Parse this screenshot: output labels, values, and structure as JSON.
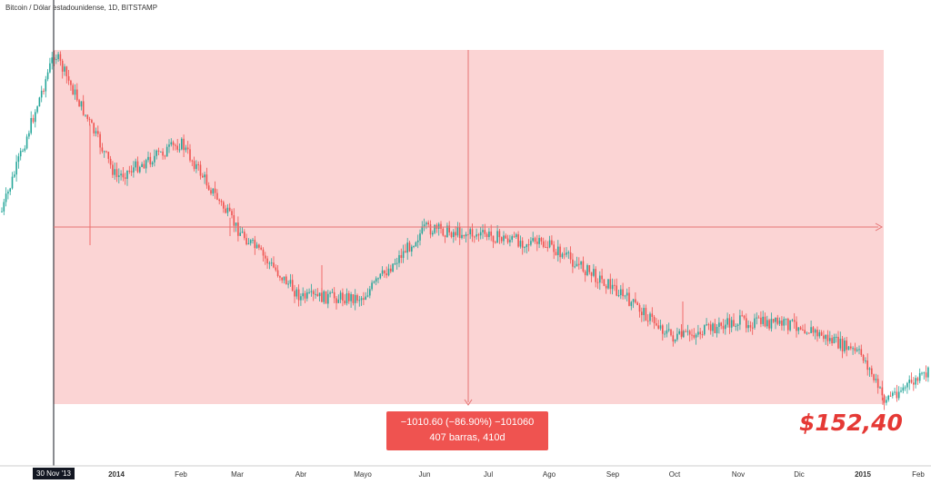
{
  "symbol_title": "Bitcoin / Dólar estadounidense, 1D, BITSTAMP",
  "measure": {
    "line1": "−1010.60 (−86.90%) −101060",
    "line2": "407 barras, 410d"
  },
  "annotation_price": "$152,40",
  "crosshair_date_label": "30 Nov '13",
  "colors": {
    "up": "#26a69a",
    "down": "#ef5350",
    "zone": "#fbd4d4",
    "accent": "#e53935"
  },
  "chart_data": {
    "type": "candlestick",
    "x_tick_labels": [
      "2014",
      "Feb",
      "Mar",
      "Abr",
      "Mayo",
      "Jun",
      "Jul",
      "Ago",
      "Sep",
      "Oct",
      "Nov",
      "Dic",
      "2015",
      "Feb"
    ],
    "bold_ticks": [
      "2014",
      "2015"
    ],
    "measured_range": {
      "start_price": 1163.0,
      "end_price": 152.4,
      "change": -1010.6,
      "change_pct": -86.9,
      "bars": 407,
      "days": 410
    },
    "price_path_approx": [
      {
        "x": "Nov '13",
        "y": 700
      },
      {
        "x": "30 Nov '13",
        "y": 1163
      },
      {
        "x": "2014",
        "y": 800
      },
      {
        "x": "Feb",
        "y": 900
      },
      {
        "x": "Mar",
        "y": 650
      },
      {
        "x": "Abr",
        "y": 450
      },
      {
        "x": "Mayo",
        "y": 450
      },
      {
        "x": "Jun",
        "y": 650
      },
      {
        "x": "Jul",
        "y": 630
      },
      {
        "x": "Ago",
        "y": 600
      },
      {
        "x": "Sep",
        "y": 480
      },
      {
        "x": "Oct",
        "y": 330
      },
      {
        "x": "Nov",
        "y": 380
      },
      {
        "x": "Dic",
        "y": 370
      },
      {
        "x": "2015",
        "y": 280
      },
      {
        "x": "2015",
        "y": 152.4
      },
      {
        "x": "Feb",
        "y": 230
      }
    ]
  }
}
